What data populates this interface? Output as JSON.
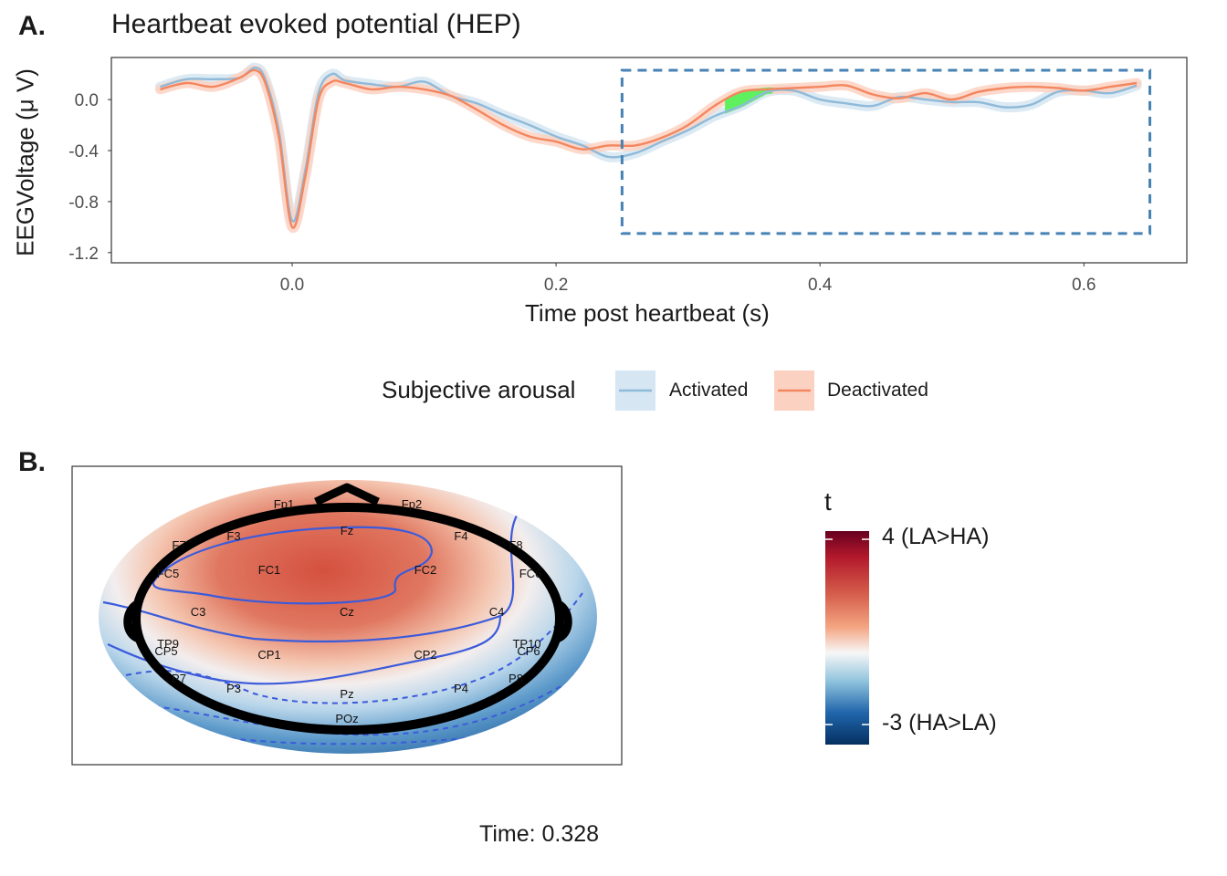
{
  "panel_a_letter": "A.",
  "panel_b_letter": "B.",
  "time_caption": "Time: 0.328",
  "colors": {
    "activated": "#8fbad9",
    "activated_band": "#d6e6f2",
    "deactivated": "#f4865f",
    "deactivated_band": "#fbd2c2",
    "highlight": "#5ff05f",
    "box": "#4682b4",
    "contour": "#3b5bdb"
  },
  "chart_data": [
    {
      "type": "line",
      "title": "Heartbeat evoked potential (HEP)",
      "xlabel": "Time post heartbeat (s)",
      "ylabel": "EEGVoltage (μ V)",
      "xlim": [
        -0.137,
        0.678
      ],
      "ylim": [
        -1.28,
        0.33
      ],
      "x_ticks": [
        "0.0",
        "0.2",
        "0.4",
        "0.6"
      ],
      "y_ticks": [
        "0.0",
        "-0.4",
        "-0.8",
        "-1.2"
      ],
      "legend": {
        "title": "Subjective arousal",
        "position": "bottom",
        "entries": [
          "Activated",
          "Deactivated"
        ]
      },
      "series": [
        {
          "name": "Activated",
          "x": [
            -0.1,
            -0.08,
            -0.06,
            -0.04,
            -0.028,
            -0.02,
            -0.01,
            0.0,
            0.01,
            0.02,
            0.03,
            0.04,
            0.06,
            0.08,
            0.1,
            0.12,
            0.14,
            0.16,
            0.18,
            0.2,
            0.22,
            0.24,
            0.26,
            0.28,
            0.3,
            0.32,
            0.34,
            0.36,
            0.38,
            0.4,
            0.42,
            0.44,
            0.46,
            0.48,
            0.5,
            0.52,
            0.54,
            0.56,
            0.58,
            0.6,
            0.62,
            0.64
          ],
          "y": [
            0.1,
            0.16,
            0.16,
            0.17,
            0.25,
            0.15,
            -0.25,
            -0.95,
            -0.55,
            0.05,
            0.2,
            0.15,
            0.12,
            0.1,
            0.14,
            0.03,
            -0.03,
            -0.12,
            -0.2,
            -0.29,
            -0.36,
            -0.45,
            -0.42,
            -0.33,
            -0.24,
            -0.13,
            -0.05,
            0.06,
            0.07,
            0.0,
            -0.03,
            -0.05,
            0.02,
            0.0,
            -0.02,
            -0.02,
            -0.06,
            -0.04,
            0.06,
            0.07,
            0.05,
            0.11
          ]
        },
        {
          "name": "Deactivated",
          "x": [
            -0.1,
            -0.08,
            -0.06,
            -0.04,
            -0.028,
            -0.02,
            -0.01,
            0.0,
            0.01,
            0.02,
            0.03,
            0.04,
            0.06,
            0.08,
            0.1,
            0.12,
            0.14,
            0.16,
            0.18,
            0.2,
            0.22,
            0.24,
            0.26,
            0.28,
            0.3,
            0.32,
            0.34,
            0.36,
            0.38,
            0.4,
            0.42,
            0.44,
            0.46,
            0.48,
            0.5,
            0.52,
            0.54,
            0.56,
            0.58,
            0.6,
            0.62,
            0.64
          ],
          "y": [
            0.08,
            0.13,
            0.1,
            0.17,
            0.23,
            0.12,
            -0.3,
            -1.0,
            -0.6,
            0.0,
            0.14,
            0.13,
            0.08,
            0.1,
            0.08,
            0.03,
            -0.08,
            -0.2,
            -0.29,
            -0.33,
            -0.39,
            -0.36,
            -0.36,
            -0.3,
            -0.2,
            -0.05,
            0.06,
            0.08,
            0.09,
            0.1,
            0.11,
            0.04,
            0.01,
            0.05,
            0.0,
            0.06,
            0.09,
            0.1,
            0.09,
            0.07,
            0.1,
            0.13
          ]
        }
      ],
      "highlight_window": [
        0.328,
        0.364
      ],
      "box_window": {
        "x": [
          0.25,
          0.65
        ],
        "y": [
          -1.05,
          0.23
        ]
      }
    },
    {
      "type": "heatmap",
      "caption": "Time: 0.328",
      "colorbar_title": "t",
      "colorbar_range": [
        -3,
        4
      ],
      "colorbar_labels": [
        "4 (LA>HA)",
        "-3 (HA>LA)"
      ],
      "electrodes": [
        "Fp1",
        "Fp2",
        "F7",
        "F3",
        "Fz",
        "F4",
        "F8",
        "FC5",
        "FC1",
        "FC2",
        "FC6",
        "C3",
        "Cz",
        "C4",
        "TP9",
        "CP5",
        "CP1",
        "CP2",
        "CP6",
        "TP10",
        "P7",
        "P3",
        "Pz",
        "P4",
        "P8",
        "POz"
      ]
    }
  ]
}
